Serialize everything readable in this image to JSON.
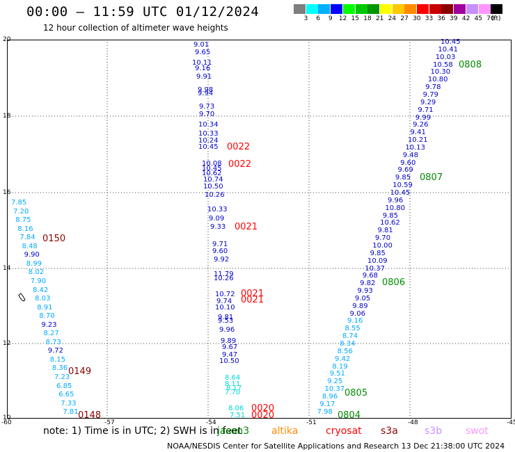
{
  "title": "00:00 – 11:59 UTC 01/12/2024",
  "subtitle": "12 hour collection of altimeter wave heights",
  "legend": {
    "levels": [
      "3",
      "6",
      "9",
      "12",
      "15",
      "18",
      "21",
      "24",
      "27",
      "30",
      "33",
      "36",
      "39",
      "42",
      "45",
      "70"
    ],
    "colors": [
      "#7f7f7f",
      "#00ffff",
      "#00b0ff",
      "#0000ff",
      "#00ff00",
      "#00c800",
      "#009600",
      "#ffff00",
      "#ffc800",
      "#ff8c00",
      "#ff0000",
      "#c80000",
      "#8c0000",
      "#a000a0",
      "#c890ff",
      "#ff96ff",
      "#000000"
    ],
    "unit": "(ft)"
  },
  "axes": {
    "x_labels": [
      "-60",
      "-57",
      "-54",
      "-51",
      "-48",
      "-45"
    ],
    "y_labels": [
      "20",
      "18",
      "16",
      "14",
      "12",
      "10"
    ]
  },
  "revs": [
    {
      "label": "0808",
      "color": "#008c00"
    },
    {
      "label": "0807",
      "color": "#008c00"
    },
    {
      "label": "0806",
      "color": "#008c00"
    },
    {
      "label": "0805",
      "color": "#008c00"
    },
    {
      "label": "0804",
      "color": "#008c00"
    },
    {
      "label": "0022",
      "color": "#ff0000"
    },
    {
      "label": "0022",
      "color": "#ff0000"
    },
    {
      "label": "0021",
      "color": "#ff0000"
    },
    {
      "label": "0021",
      "color": "#ff0000"
    },
    {
      "label": "0021",
      "color": "#ff0000"
    },
    {
      "label": "0020",
      "color": "#ff0000"
    },
    {
      "label": "0020",
      "color": "#ff0000"
    },
    {
      "label": "0150",
      "color": "#8c0000"
    },
    {
      "label": "0149",
      "color": "#8c0000"
    },
    {
      "label": "0148",
      "color": "#8c0000"
    }
  ],
  "tracks": {
    "colors": {
      "blue": "#0000cc",
      "cyan": "#00aaff",
      "lightcyan": "#00d8d8"
    },
    "track_0808": [
      "10.45",
      "10.41",
      "10.03",
      "10.58",
      "10.30",
      "10.80",
      "9.78",
      "9.79",
      "9.29",
      "9.71",
      "9.99",
      "9.26",
      "9.41",
      "10.21",
      "10.13",
      "9.48",
      "9.60",
      "9.69",
      "9.85",
      "10.59",
      "10.45",
      "9.96",
      "10.80",
      "9.85",
      "10.62",
      "9.81",
      "9.70",
      "10.00",
      "9.85",
      "10.09",
      "10.37",
      "9.68",
      "9.82",
      "9.93",
      "9.05",
      "9.89",
      "9.06",
      "9.16",
      "8.55",
      "8.74",
      "8.34",
      "8.56",
      "9.42",
      "8.19",
      "9.51",
      "9.25",
      "10.37",
      "8.96",
      "9.17",
      "7.98"
    ],
    "track_0022": [
      "9.01",
      "9.65",
      "10.11",
      "9.16",
      "9.91",
      "9.98",
      "9.94",
      "9.73",
      "9.70",
      "10.34",
      "10.33",
      "10.24",
      "10.45",
      "10.08",
      "10.45",
      "10.62",
      "10.74",
      "10.50",
      "10.26",
      "10.33",
      "9.09",
      "9.33",
      "9.71",
      "9.60",
      "9.92",
      "11.79",
      "10.26",
      "10.72",
      "9.74",
      "10.10",
      "9.81",
      "9.53",
      "9.96",
      "9.89",
      "9.67",
      "9.47",
      "10.50",
      "8.64",
      "8.11",
      "8.17",
      "7.70",
      "8.06",
      "7.51"
    ],
    "track_0150": [
      "7.85",
      "7.20",
      "8.75",
      "8.16",
      "7.84",
      "8.48",
      "9.90",
      "8.99",
      "8.02",
      "7.90",
      "8.42",
      "8.03",
      "8.91",
      "8.70",
      "9.23",
      "8.27",
      "8.73",
      "9.72",
      "8.15",
      "8.36",
      "7.23",
      "6.85",
      "6.65",
      "7.33",
      "7.81"
    ]
  },
  "note": "note:  1) Time is in UTC; 2) SWH is in feet",
  "satellites": [
    {
      "name": "jason3",
      "color": "#008c00"
    },
    {
      "name": "altika",
      "color": "#ff8c00"
    },
    {
      "name": "cryosat",
      "color": "#ff0000"
    },
    {
      "name": "s3a",
      "color": "#8c0000"
    },
    {
      "name": "s3b",
      "color": "#c890ff"
    },
    {
      "name": "swot",
      "color": "#ff96ff"
    }
  ],
  "footer": "NOAA/NESDIS Center for Satellite Applications and Research    13 Dec 21:38:00 UTC 2024"
}
